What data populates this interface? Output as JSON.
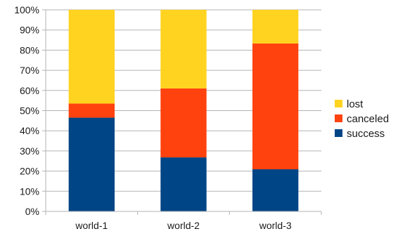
{
  "chart_data": {
    "type": "bar",
    "stacked": true,
    "categories": [
      "world-1",
      "world-2",
      "world-3"
    ],
    "series": [
      {
        "name": "success",
        "color": "#004586",
        "values": [
          46.5,
          26.8,
          20.9
        ]
      },
      {
        "name": " canceled",
        "color": "#ff420e",
        "values": [
          7.0,
          34.2,
          62.4
        ]
      },
      {
        "name": "lost",
        "color": "#ffd320",
        "values": [
          46.5,
          39.0,
          16.7
        ]
      }
    ],
    "legend_order": [
      "lost",
      " canceled",
      "success"
    ],
    "y_ticks": [
      "0%",
      "10%",
      "20%",
      "30%",
      "40%",
      "50%",
      "60%",
      "70%",
      "80%",
      "90%",
      "100%"
    ],
    "ylim": [
      0,
      100
    ],
    "title": "",
    "xlabel": "",
    "ylabel": "",
    "grid": true,
    "legend_position": "right"
  }
}
